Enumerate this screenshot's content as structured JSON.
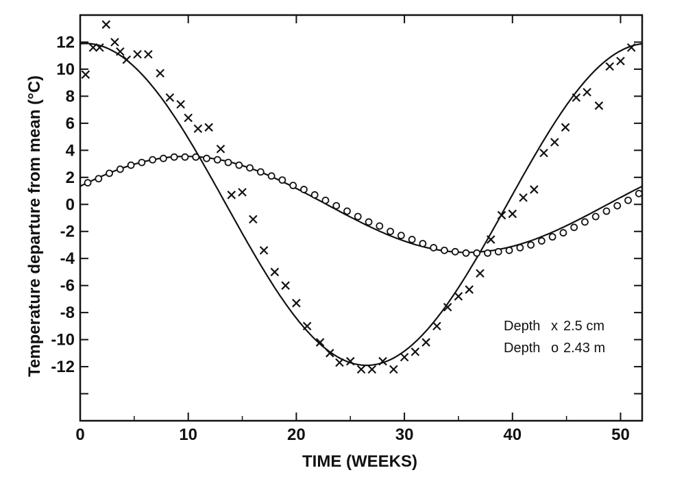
{
  "chart_data": {
    "type": "scatter",
    "title": "",
    "xlabel": "TIME (WEEKS)",
    "ylabel": "Temperature departure from mean (°C)",
    "xlim": [
      0,
      52
    ],
    "ylim": [
      -16,
      14
    ],
    "x_ticks": [
      0,
      10,
      20,
      30,
      40,
      50
    ],
    "y_ticks": [
      12,
      10,
      8,
      6,
      4,
      2,
      0,
      -2,
      -4,
      -6,
      -8,
      -10,
      -12
    ],
    "x_tick_labels": [
      "0",
      "10",
      "20",
      "30",
      "40",
      "50"
    ],
    "y_tick_labels": [
      "12",
      "10",
      "8",
      "6",
      "4",
      "2",
      "0",
      "-2",
      "-4",
      "-6",
      "-8",
      "-10",
      "-12"
    ],
    "y_minor_ticks": [
      -14
    ],
    "grid": false,
    "legend_position": "bottom-right",
    "series": [
      {
        "name": "Depth x 2.5 cm",
        "marker": "x",
        "points": [
          [
            0.5,
            9.6
          ],
          [
            1.2,
            11.6
          ],
          [
            1.8,
            11.6
          ],
          [
            2.4,
            13.3
          ],
          [
            3.2,
            12.0
          ],
          [
            3.7,
            11.3
          ],
          [
            4.3,
            10.7
          ],
          [
            5.3,
            11.1
          ],
          [
            6.3,
            11.1
          ],
          [
            7.4,
            9.7
          ],
          [
            8.3,
            7.9
          ],
          [
            9.3,
            7.4
          ],
          [
            10.0,
            6.4
          ],
          [
            10.9,
            5.6
          ],
          [
            11.9,
            5.7
          ],
          [
            13.0,
            4.1
          ],
          [
            14.0,
            0.7
          ],
          [
            15.0,
            0.9
          ],
          [
            16.0,
            -1.1
          ],
          [
            17.0,
            -3.4
          ],
          [
            18.0,
            -5.0
          ],
          [
            19.0,
            -6.0
          ],
          [
            20.0,
            -7.3
          ],
          [
            21.0,
            -9.0
          ],
          [
            22.2,
            -10.2
          ],
          [
            23.1,
            -11.0
          ],
          [
            24.0,
            -11.7
          ],
          [
            25.0,
            -11.6
          ],
          [
            26.0,
            -12.2
          ],
          [
            27.0,
            -12.2
          ],
          [
            28.0,
            -11.6
          ],
          [
            29.0,
            -12.2
          ],
          [
            30.0,
            -11.3
          ],
          [
            31.0,
            -10.9
          ],
          [
            32.0,
            -10.2
          ],
          [
            33.0,
            -9.0
          ],
          [
            34.0,
            -7.6
          ],
          [
            35.0,
            -6.8
          ],
          [
            36.0,
            -6.3
          ],
          [
            37.0,
            -5.1
          ],
          [
            38.0,
            -2.6
          ],
          [
            39.0,
            -0.8
          ],
          [
            40.0,
            -0.7
          ],
          [
            41.0,
            0.5
          ],
          [
            42.0,
            1.1
          ],
          [
            42.9,
            3.8
          ],
          [
            43.9,
            4.6
          ],
          [
            44.9,
            5.7
          ],
          [
            45.9,
            7.9
          ],
          [
            46.9,
            8.3
          ],
          [
            48.0,
            7.3
          ],
          [
            49.0,
            10.2
          ],
          [
            50.0,
            10.6
          ],
          [
            51.0,
            11.6
          ]
        ]
      },
      {
        "name": "Depth o 2.43 m",
        "marker": "o",
        "points": [
          [
            0.7,
            1.6
          ],
          [
            1.7,
            1.9
          ],
          [
            2.7,
            2.3
          ],
          [
            3.7,
            2.6
          ],
          [
            4.7,
            2.9
          ],
          [
            5.7,
            3.1
          ],
          [
            6.7,
            3.3
          ],
          [
            7.7,
            3.4
          ],
          [
            8.7,
            3.5
          ],
          [
            9.7,
            3.5
          ],
          [
            10.7,
            3.5
          ],
          [
            11.7,
            3.4
          ],
          [
            12.7,
            3.3
          ],
          [
            13.7,
            3.1
          ],
          [
            14.7,
            2.9
          ],
          [
            15.7,
            2.7
          ],
          [
            16.7,
            2.4
          ],
          [
            17.7,
            2.1
          ],
          [
            18.7,
            1.8
          ],
          [
            19.7,
            1.4
          ],
          [
            20.7,
            1.1
          ],
          [
            21.7,
            0.7
          ],
          [
            22.7,
            0.3
          ],
          [
            23.7,
            -0.1
          ],
          [
            24.7,
            -0.5
          ],
          [
            25.7,
            -0.9
          ],
          [
            26.7,
            -1.3
          ],
          [
            27.7,
            -1.6
          ],
          [
            28.7,
            -2.0
          ],
          [
            29.7,
            -2.3
          ],
          [
            30.7,
            -2.6
          ],
          [
            31.7,
            -2.9
          ],
          [
            32.7,
            -3.2
          ],
          [
            33.7,
            -3.4
          ],
          [
            34.7,
            -3.5
          ],
          [
            35.7,
            -3.6
          ],
          [
            36.7,
            -3.6
          ],
          [
            37.7,
            -3.6
          ],
          [
            38.7,
            -3.5
          ],
          [
            39.7,
            -3.4
          ],
          [
            40.7,
            -3.2
          ],
          [
            41.7,
            -3.0
          ],
          [
            42.7,
            -2.7
          ],
          [
            43.7,
            -2.4
          ],
          [
            44.7,
            -2.1
          ],
          [
            45.7,
            -1.7
          ],
          [
            46.7,
            -1.3
          ],
          [
            47.7,
            -0.9
          ],
          [
            48.7,
            -0.5
          ],
          [
            49.7,
            -0.1
          ],
          [
            50.7,
            0.3
          ],
          [
            51.7,
            0.8
          ]
        ]
      }
    ],
    "fit_curves": [
      {
        "series": "Depth x 2.5 cm",
        "mean": 0,
        "amplitude": 11.9,
        "peak_week": 0.5,
        "period_weeks": 52
      },
      {
        "series": "Depth o 2.43 m",
        "mean": 0,
        "amplitude": 3.55,
        "peak_week": 9.8,
        "period_weeks": 52
      }
    ],
    "legend": [
      {
        "label": "Depth",
        "symbol": "x",
        "value": "2.5 cm"
      },
      {
        "label": "Depth",
        "symbol": "o",
        "value": "2.43 m"
      }
    ]
  }
}
